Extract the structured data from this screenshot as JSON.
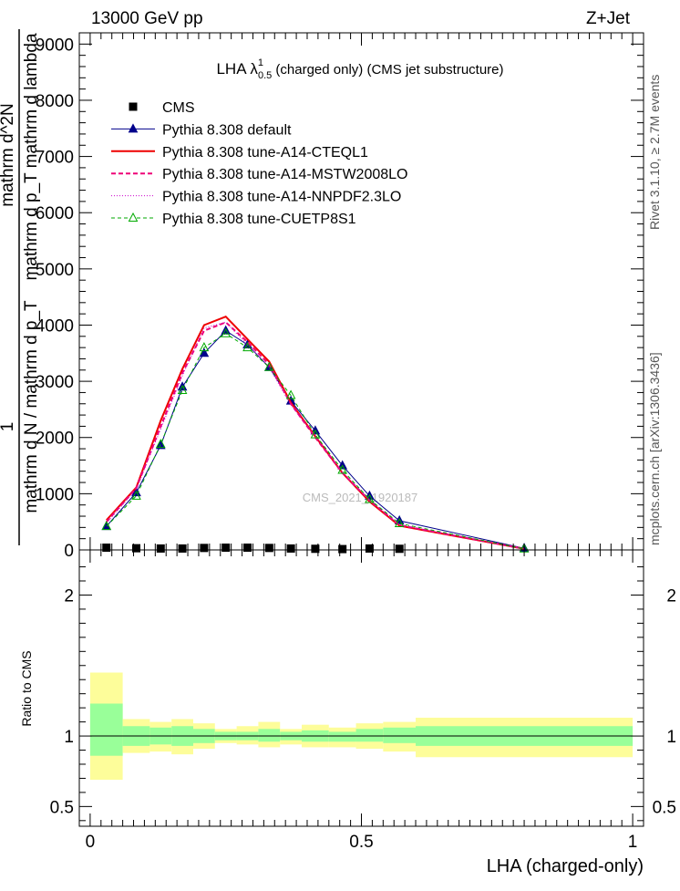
{
  "header": {
    "left": "13000 GeV pp",
    "right": "Z+Jet"
  },
  "side_text": {
    "rivet": "Rivet 3.1.10, ≥ 2.7M events",
    "mcplots": "mcplots.cern.ch [arXiv:1306.3436]"
  },
  "chart_data": [
    {
      "type": "line",
      "title": "LHA λ",
      "title_superscript": "1",
      "title_subscript": "0.5",
      "title_rest": " (charged only) (CMS jet substructure)",
      "ylabel_lines": [
        "1",
        "mathrm d N / mathrm d p_T",
        "mathrm d^2N",
        "mathrm d p_T mathrm d lambda"
      ],
      "watermark": "CMS_2021_I1920187",
      "xlim": [
        -0.02,
        1.02
      ],
      "ylim": [
        0,
        9200
      ],
      "yticks": [
        {
          "v": 0,
          "label": "0"
        },
        {
          "v": 1000,
          "label": "1000"
        },
        {
          "v": 2000,
          "label": "2000"
        },
        {
          "v": 3000,
          "label": "3000"
        },
        {
          "v": 4000,
          "label": "4000"
        },
        {
          "v": 5000,
          "label": "5000"
        },
        {
          "v": 6000,
          "label": "6000"
        },
        {
          "v": 7000,
          "label": "7000"
        },
        {
          "v": 8000,
          "label": "8000"
        },
        {
          "v": 9000,
          "label": "9000"
        }
      ],
      "legend": {
        "placement": "top-left"
      },
      "data_series": {
        "name": "CMS",
        "color": "#000000",
        "x": [
          0.03,
          0.085,
          0.13,
          0.17,
          0.21,
          0.25,
          0.29,
          0.33,
          0.37,
          0.415,
          0.465,
          0.515,
          0.57
        ],
        "values": [
          40,
          30,
          25,
          25,
          35,
          40,
          40,
          35,
          25,
          20,
          15,
          25,
          20
        ]
      },
      "series": [
        {
          "name": "Pythia 8.308 default",
          "color": "#00008b",
          "width": 1,
          "dash": "",
          "marker": "triangle-filled",
          "x": [
            0.03,
            0.085,
            0.13,
            0.17,
            0.21,
            0.25,
            0.29,
            0.33,
            0.37,
            0.415,
            0.465,
            0.515,
            0.57,
            0.8
          ],
          "values": [
            420,
            1020,
            1860,
            2900,
            3500,
            3900,
            3650,
            3250,
            2650,
            2120,
            1500,
            960,
            520,
            30
          ]
        },
        {
          "name": "Pythia 8.308 tune-A14-CTEQL1",
          "color": "#ee0000",
          "width": 2,
          "dash": "",
          "marker": "none",
          "x": [
            0.03,
            0.085,
            0.13,
            0.17,
            0.21,
            0.25,
            0.29,
            0.33,
            0.37,
            0.415,
            0.465,
            0.515,
            0.57,
            0.8
          ],
          "values": [
            530,
            1110,
            2300,
            3220,
            4000,
            4150,
            3750,
            3350,
            2620,
            2020,
            1370,
            860,
            430,
            20
          ]
        },
        {
          "name": "Pythia 8.308 tune-A14-MSTW2008LO",
          "color": "#ee0077",
          "width": 2,
          "dash": "5,3",
          "marker": "none",
          "x": [
            0.03,
            0.085,
            0.13,
            0.17,
            0.21,
            0.25,
            0.29,
            0.33,
            0.37,
            0.415,
            0.465,
            0.515,
            0.57,
            0.8
          ],
          "values": [
            500,
            1100,
            2200,
            3150,
            3900,
            4050,
            3700,
            3300,
            2600,
            2000,
            1370,
            880,
            440,
            20
          ]
        },
        {
          "name": "Pythia 8.308 tune-A14-NNPDF2.3LO",
          "color": "#cc00cc",
          "width": 1,
          "dash": "1,2",
          "marker": "none",
          "x": [
            0.03,
            0.085,
            0.13,
            0.17,
            0.21,
            0.25,
            0.29,
            0.33,
            0.37,
            0.415,
            0.465,
            0.515,
            0.57,
            0.8
          ],
          "values": [
            480,
            1080,
            2150,
            3100,
            3950,
            4050,
            3650,
            3250,
            2580,
            2020,
            1380,
            890,
            450,
            20
          ]
        },
        {
          "name": "Pythia 8.308 tune-CUETP8S1",
          "color": "#00aa00",
          "width": 1,
          "dash": "4,3",
          "marker": "triangle-open",
          "x": [
            0.03,
            0.085,
            0.13,
            0.17,
            0.21,
            0.25,
            0.29,
            0.33,
            0.37,
            0.415,
            0.465,
            0.515,
            0.57,
            0.8
          ],
          "values": [
            420,
            960,
            1880,
            2840,
            3600,
            3850,
            3600,
            3250,
            2750,
            2050,
            1420,
            900,
            470,
            20
          ]
        }
      ]
    },
    {
      "type": "area",
      "xlabel": "LHA (charged-only)",
      "ylabel": "Ratio to CMS",
      "xlim": [
        -0.02,
        1.02
      ],
      "ylim": [
        0.36,
        2.32
      ],
      "xticks": [
        {
          "v": 0,
          "label": "0"
        },
        {
          "v": 0.5,
          "label": "0.5"
        },
        {
          "v": 1,
          "label": "1"
        }
      ],
      "yticks": [
        {
          "v": 0.5,
          "label": "0.5"
        },
        {
          "v": 1,
          "label": "1"
        },
        {
          "v": 2,
          "label": "2"
        }
      ],
      "band_colors": {
        "outer": "#fdfd9a",
        "inner": "#99ff99",
        "line": "#000000"
      },
      "bins": [
        {
          "lo": 0.0,
          "hi": 0.06,
          "outer": [
            0.69,
            1.45
          ],
          "inner": [
            0.86,
            1.23
          ]
        },
        {
          "lo": 0.06,
          "hi": 0.11,
          "outer": [
            0.88,
            1.12
          ],
          "inner": [
            0.93,
            1.07
          ]
        },
        {
          "lo": 0.11,
          "hi": 0.15,
          "outer": [
            0.89,
            1.1
          ],
          "inner": [
            0.94,
            1.06
          ]
        },
        {
          "lo": 0.15,
          "hi": 0.19,
          "outer": [
            0.87,
            1.12
          ],
          "inner": [
            0.93,
            1.07
          ]
        },
        {
          "lo": 0.19,
          "hi": 0.23,
          "outer": [
            0.91,
            1.09
          ],
          "inner": [
            0.95,
            1.05
          ]
        },
        {
          "lo": 0.23,
          "hi": 0.27,
          "outer": [
            0.95,
            1.05
          ],
          "inner": [
            0.97,
            1.03
          ]
        },
        {
          "lo": 0.27,
          "hi": 0.31,
          "outer": [
            0.94,
            1.07
          ],
          "inner": [
            0.97,
            1.03
          ]
        },
        {
          "lo": 0.31,
          "hi": 0.35,
          "outer": [
            0.92,
            1.1
          ],
          "inner": [
            0.96,
            1.05
          ]
        },
        {
          "lo": 0.35,
          "hi": 0.39,
          "outer": [
            0.94,
            1.05
          ],
          "inner": [
            0.97,
            1.03
          ]
        },
        {
          "lo": 0.39,
          "hi": 0.44,
          "outer": [
            0.92,
            1.08
          ],
          "inner": [
            0.96,
            1.04
          ]
        },
        {
          "lo": 0.44,
          "hi": 0.49,
          "outer": [
            0.92,
            1.06
          ],
          "inner": [
            0.96,
            1.03
          ]
        },
        {
          "lo": 0.49,
          "hi": 0.54,
          "outer": [
            0.91,
            1.09
          ],
          "inner": [
            0.96,
            1.05
          ]
        },
        {
          "lo": 0.54,
          "hi": 0.6,
          "outer": [
            0.89,
            1.1
          ],
          "inner": [
            0.95,
            1.06
          ]
        },
        {
          "lo": 0.6,
          "hi": 1.0,
          "outer": [
            0.85,
            1.13
          ],
          "inner": [
            0.93,
            1.07
          ]
        }
      ]
    }
  ]
}
